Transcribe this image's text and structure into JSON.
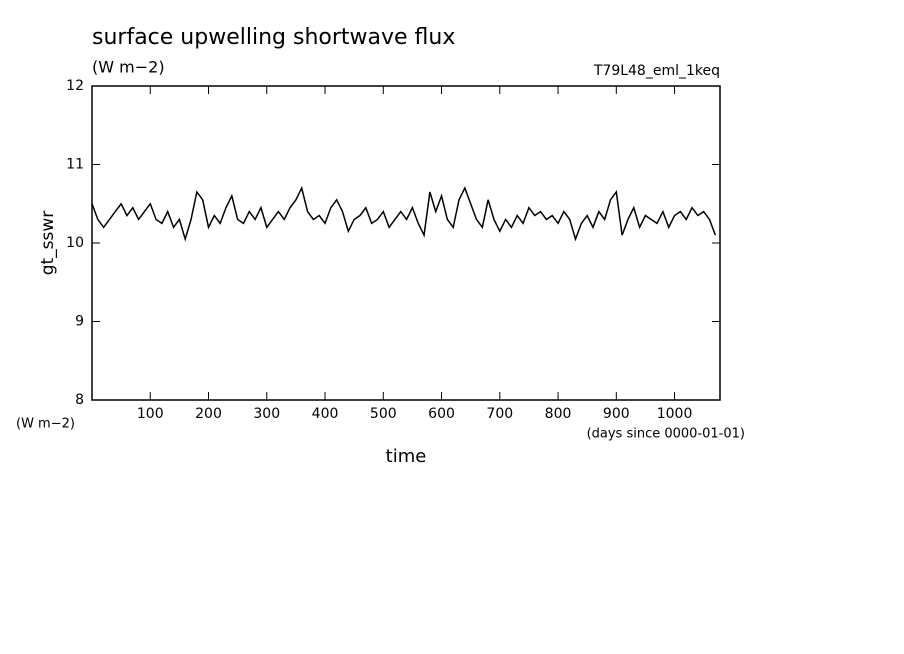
{
  "chart_data": {
    "type": "line",
    "title": "surface upwelling shortwave flux",
    "subtitle": "(W m−2)",
    "annotation": "T79L48_eml_1keq",
    "y_label": "gt_sswr",
    "y_units": "(W m−2)",
    "x_label": "time",
    "x_units": "(days since 0000-01-01)",
    "x": [
      0,
      10,
      20,
      30,
      40,
      50,
      60,
      70,
      80,
      90,
      100,
      110,
      120,
      130,
      140,
      150,
      160,
      170,
      180,
      190,
      200,
      210,
      220,
      230,
      240,
      250,
      260,
      270,
      280,
      290,
      300,
      310,
      320,
      330,
      340,
      350,
      360,
      370,
      380,
      390,
      400,
      410,
      420,
      430,
      440,
      450,
      460,
      470,
      480,
      490,
      500,
      510,
      520,
      530,
      540,
      550,
      560,
      570,
      580,
      590,
      600,
      610,
      620,
      630,
      640,
      650,
      660,
      670,
      680,
      690,
      700,
      710,
      720,
      730,
      740,
      750,
      760,
      770,
      780,
      790,
      800,
      810,
      820,
      830,
      840,
      850,
      860,
      870,
      880,
      890,
      900,
      910,
      920,
      930,
      940,
      950,
      960,
      970,
      980,
      990,
      1000,
      1010,
      1020,
      1030,
      1040,
      1050,
      1060,
      1070
    ],
    "series": [
      {
        "name": "gt_sswr",
        "color": "#000000",
        "values": [
          10.5,
          10.3,
          10.2,
          10.3,
          10.4,
          10.5,
          10.35,
          10.45,
          10.3,
          10.4,
          10.5,
          10.3,
          10.25,
          10.4,
          10.2,
          10.3,
          10.05,
          10.3,
          10.65,
          10.55,
          10.2,
          10.35,
          10.25,
          10.45,
          10.6,
          10.3,
          10.25,
          10.4,
          10.3,
          10.45,
          10.2,
          10.3,
          10.4,
          10.3,
          10.45,
          10.55,
          10.7,
          10.4,
          10.3,
          10.35,
          10.25,
          10.45,
          10.55,
          10.4,
          10.15,
          10.3,
          10.35,
          10.45,
          10.25,
          10.3,
          10.4,
          10.2,
          10.3,
          10.4,
          10.3,
          10.45,
          10.25,
          10.1,
          10.65,
          10.4,
          10.6,
          10.3,
          10.2,
          10.55,
          10.7,
          10.5,
          10.3,
          10.2,
          10.55,
          10.3,
          10.15,
          10.3,
          10.2,
          10.35,
          10.25,
          10.45,
          10.35,
          10.4,
          10.3,
          10.35,
          10.25,
          10.4,
          10.3,
          10.05,
          10.25,
          10.35,
          10.2,
          10.4,
          10.3,
          10.55,
          10.65,
          10.1,
          10.3,
          10.45,
          10.2,
          10.35,
          10.3,
          10.25,
          10.4,
          10.2,
          10.35,
          10.4,
          10.3,
          10.45,
          10.35,
          10.4,
          10.3,
          10.1
        ]
      }
    ],
    "xlim": [
      0,
      1078
    ],
    "ylim": [
      8,
      12
    ],
    "xticks": [
      100,
      200,
      300,
      400,
      500,
      600,
      700,
      800,
      900,
      1000
    ],
    "yticks": [
      8,
      9,
      10,
      11,
      12
    ]
  }
}
